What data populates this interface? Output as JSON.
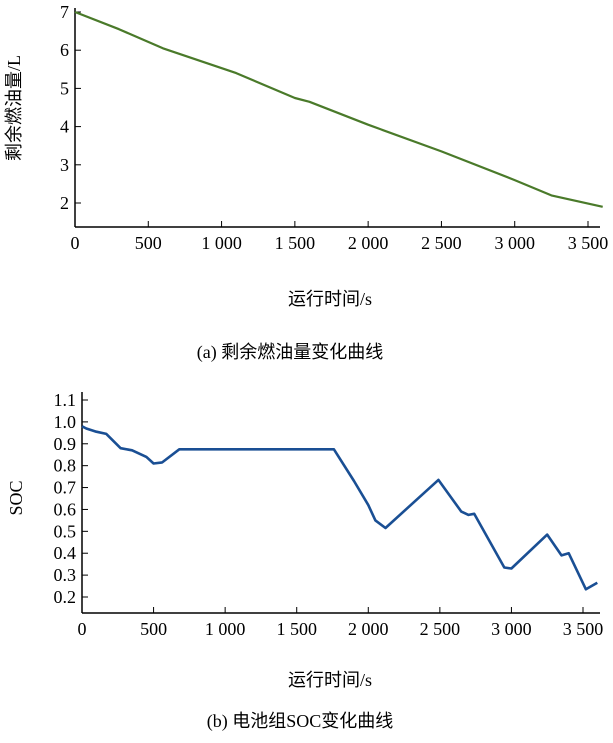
{
  "chart_data": [
    {
      "type": "line",
      "title": "(a) 剩余燃油量变化曲线",
      "xlabel": "运行时间/s",
      "ylabel": "剩余燃油量/L",
      "xlim": [
        0,
        3600
      ],
      "ylim": [
        1.6,
        7
      ],
      "xticks": [
        0,
        500,
        1000,
        1500,
        2000,
        2500,
        3000,
        3500
      ],
      "xtick_labels": [
        "0",
        "500",
        "1 000",
        "1 500",
        "2 000",
        "2 500",
        "3 000",
        "3 500"
      ],
      "yticks": [
        2,
        3,
        4,
        5,
        6,
        7
      ],
      "ytick_labels": [
        "2",
        "3",
        "4",
        "5",
        "6",
        "7"
      ],
      "color": "#4a7a2a",
      "x": [
        0,
        300,
        600,
        1100,
        1500,
        1600,
        2000,
        2500,
        3000,
        3250,
        3600
      ],
      "y": [
        7,
        6.55,
        6.05,
        5.4,
        4.75,
        4.65,
        4.05,
        3.35,
        2.6,
        2.2,
        1.9
      ]
    },
    {
      "type": "line",
      "title": "(b) 电池组SOC变化曲线",
      "xlabel": "运行时间/s",
      "ylabel": "SOC",
      "xlim": [
        0,
        3600
      ],
      "ylim": [
        0.15,
        1.1
      ],
      "xticks": [
        0,
        500,
        1000,
        1500,
        2000,
        2500,
        3000,
        3500
      ],
      "xtick_labels": [
        "0",
        "500",
        "1 000",
        "1 500",
        "2 000",
        "2 500",
        "3 000",
        "3 500"
      ],
      "yticks": [
        0.2,
        0.3,
        0.4,
        0.5,
        0.6,
        0.7,
        0.8,
        0.9,
        1.0,
        1.1
      ],
      "ytick_labels": [
        "0.2",
        "0.3",
        "0.4",
        "0.5",
        "0.6",
        "0.7",
        "0.8",
        "0.9",
        "1.0",
        "1.1"
      ],
      "color": "#1a4f94",
      "x": [
        0,
        30,
        100,
        170,
        270,
        350,
        450,
        500,
        560,
        680,
        1760,
        1900,
        2000,
        2050,
        2120,
        2490,
        2650,
        2700,
        2740,
        2950,
        3000,
        3250,
        3350,
        3400,
        3520,
        3600
      ],
      "y": [
        0.98,
        0.97,
        0.955,
        0.945,
        0.88,
        0.87,
        0.84,
        0.81,
        0.815,
        0.875,
        0.875,
        0.73,
        0.62,
        0.55,
        0.515,
        0.735,
        0.59,
        0.575,
        0.58,
        0.335,
        0.33,
        0.485,
        0.39,
        0.4,
        0.235,
        0.265
      ]
    }
  ]
}
